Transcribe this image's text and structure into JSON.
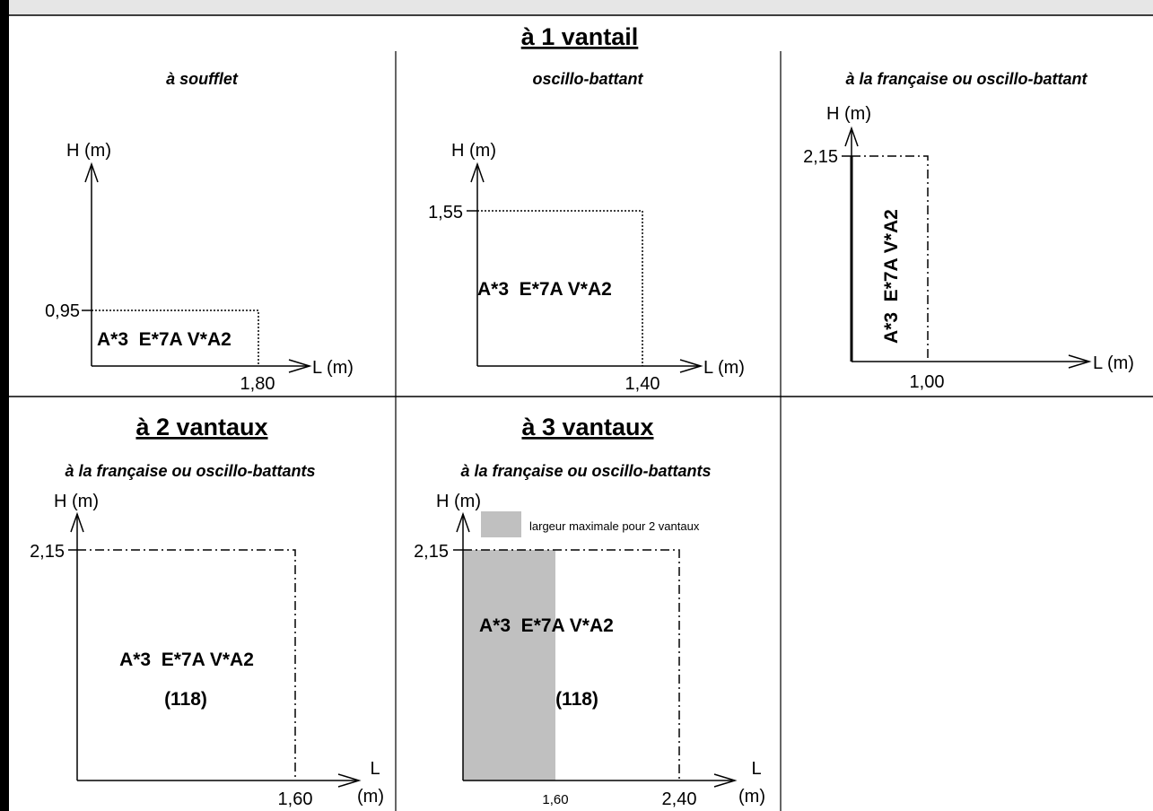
{
  "section_1": {
    "title": "à 1 vantail"
  },
  "section_2": {
    "title": "à 2 vantaux"
  },
  "section_3": {
    "title": "à 3 vantaux"
  },
  "axes": {
    "h_label": "H (m)",
    "l_label": "L (m)",
    "l_label_stacked": [
      "L",
      "(m)"
    ]
  },
  "panels": {
    "soufflet": {
      "subtitle": "à soufflet",
      "height": "0,95",
      "width": "1,80",
      "perf": "A*3  E*7A V*A2"
    },
    "oscillo": {
      "subtitle": "oscillo-battant",
      "height": "1,55",
      "width": "1,40",
      "perf": "A*3  E*7A V*A2"
    },
    "francaise_1": {
      "subtitle": "à la française ou oscillo-battant",
      "height": "2,15",
      "width": "1,00",
      "perf": "A*3  E*7A V*A2"
    },
    "francaise_2": {
      "subtitle": "à la française ou oscillo-battants",
      "height": "2,15",
      "width": "1,60",
      "perf": "A*3  E*7A V*A2",
      "ref": "(118)"
    },
    "francaise_3": {
      "subtitle": "à la française ou oscillo-battants",
      "height": "2,15",
      "width_1": "1,60",
      "width_2": "2,40",
      "perf": "A*3  E*7A V*A2",
      "ref": "(118)",
      "legend": "largeur maximale pour 2 vantaux"
    }
  },
  "colors": {
    "line": "#000000",
    "shade": "#c0c0c0",
    "header": "#e6e6e6"
  }
}
